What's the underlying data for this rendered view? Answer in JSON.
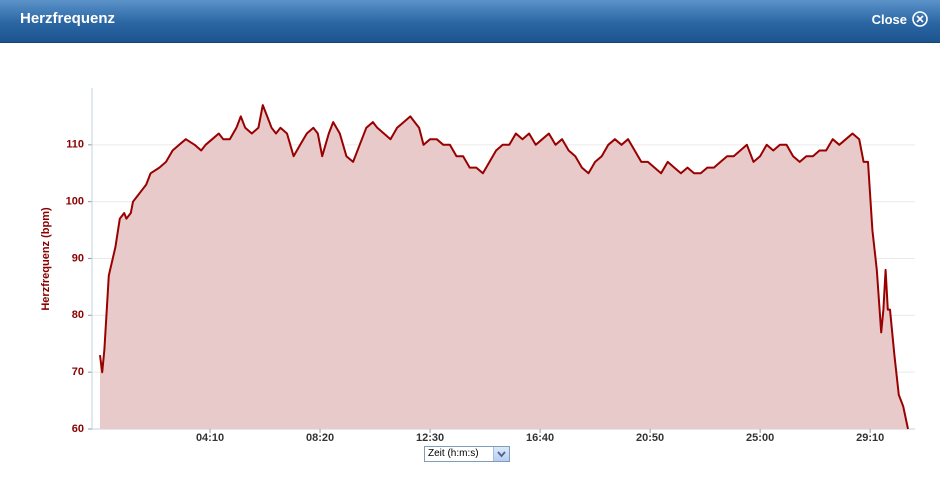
{
  "header": {
    "title": "Herzfrequenz",
    "close": "Close"
  },
  "chart_data": {
    "type": "area",
    "ylabel": "Herzfrequenz (bpm)",
    "xlabel": "Zeit (h:m:s)",
    "color": "#990000",
    "fill": "#e8caca",
    "grid": true,
    "xlim": [
      0,
      1836
    ],
    "ylim": [
      60,
      120
    ],
    "yticks": [
      60,
      70,
      80,
      90,
      100,
      110
    ],
    "xticks": [
      {
        "value": 250,
        "label": "04:10"
      },
      {
        "value": 500,
        "label": "08:20"
      },
      {
        "value": 750,
        "label": "12:30"
      },
      {
        "value": 1000,
        "label": "16:40"
      },
      {
        "value": 1250,
        "label": "20:50"
      },
      {
        "value": 1500,
        "label": "25:00"
      },
      {
        "value": 1750,
        "label": "29:10"
      }
    ],
    "x": [
      0,
      5,
      10,
      20,
      35,
      45,
      55,
      60,
      70,
      75,
      85,
      95,
      105,
      115,
      135,
      150,
      165,
      180,
      195,
      215,
      230,
      240,
      255,
      270,
      280,
      295,
      310,
      320,
      330,
      345,
      360,
      370,
      380,
      390,
      400,
      410,
      425,
      440,
      455,
      470,
      485,
      495,
      505,
      520,
      530,
      545,
      560,
      575,
      590,
      605,
      620,
      630,
      645,
      660,
      675,
      690,
      705,
      715,
      725,
      735,
      750,
      765,
      780,
      795,
      810,
      825,
      840,
      855,
      870,
      885,
      900,
      915,
      930,
      945,
      960,
      975,
      990,
      1005,
      1020,
      1035,
      1050,
      1065,
      1080,
      1095,
      1110,
      1125,
      1140,
      1155,
      1170,
      1185,
      1200,
      1215,
      1230,
      1245,
      1260,
      1275,
      1290,
      1305,
      1320,
      1335,
      1350,
      1365,
      1380,
      1395,
      1410,
      1425,
      1440,
      1455,
      1470,
      1485,
      1500,
      1515,
      1530,
      1545,
      1560,
      1575,
      1590,
      1605,
      1620,
      1635,
      1650,
      1665,
      1680,
      1695,
      1710,
      1725,
      1735,
      1745,
      1755,
      1765,
      1775,
      1780,
      1785,
      1790,
      1795,
      1805,
      1815,
      1825,
      1836
    ],
    "values": [
      73,
      70,
      74,
      87,
      92,
      97,
      98,
      97,
      98,
      100,
      101,
      102,
      103,
      105,
      106,
      107,
      109,
      110,
      111,
      110,
      109,
      110,
      111,
      112,
      111,
      111,
      113,
      115,
      113,
      112,
      113,
      117,
      115,
      113,
      112,
      113,
      112,
      108,
      110,
      112,
      113,
      112,
      108,
      112,
      114,
      112,
      108,
      107,
      110,
      113,
      114,
      113,
      112,
      111,
      113,
      114,
      115,
      114,
      113,
      110,
      111,
      111,
      110,
      110,
      108,
      108,
      106,
      106,
      105,
      107,
      109,
      110,
      110,
      112,
      111,
      112,
      110,
      111,
      112,
      110,
      111,
      109,
      108,
      106,
      105,
      107,
      108,
      110,
      111,
      110,
      111,
      109,
      107,
      107,
      106,
      105,
      107,
      106,
      105,
      106,
      105,
      105,
      106,
      106,
      107,
      108,
      108,
      109,
      110,
      107,
      108,
      110,
      109,
      110,
      110,
      108,
      107,
      108,
      108,
      109,
      109,
      111,
      110,
      111,
      112,
      111,
      107,
      107,
      95,
      88,
      77,
      81,
      88,
      81,
      81,
      73,
      66,
      64,
      60
    ]
  }
}
